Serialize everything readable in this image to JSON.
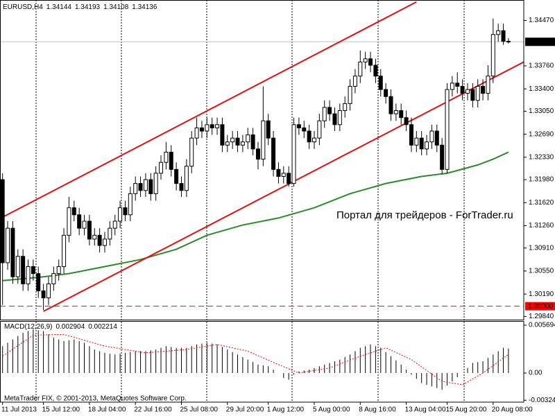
{
  "chart_data": [
    {
      "type": "candlestick",
      "symbol": "EURUSD,H4",
      "candle_color": "#000000",
      "up_fill": "#ffffff",
      "down_fill": "#000000",
      "open": [
        1.3198,
        1.3068,
        1.3122,
        1.3046,
        1.3078,
        1.3035,
        1.3062,
        1.3051,
        1.3024,
        1.3013,
        1.3035,
        1.3051,
        1.3062,
        1.3111,
        1.3154,
        1.3143,
        1.3122,
        1.3133,
        1.3105,
        1.3111,
        1.3095,
        1.3105,
        1.3122,
        1.3133,
        1.3154,
        1.3143,
        1.3176,
        1.3192,
        1.3181,
        1.3198,
        1.3176,
        1.3208,
        1.3225,
        1.3241,
        1.3214,
        1.3192,
        1.3181,
        1.3219,
        1.3263,
        1.3279,
        1.3274,
        1.3284,
        1.3279,
        1.3284,
        1.3252,
        1.3257,
        1.3263,
        1.3252,
        1.3257,
        1.3268,
        1.3246,
        1.323,
        1.329,
        1.3263,
        1.3214,
        1.3203,
        1.3208,
        1.3192,
        1.3284,
        1.3279,
        1.3274,
        1.3257,
        1.3263,
        1.329,
        1.3311,
        1.3301,
        1.3284,
        1.3306,
        1.3317,
        1.3344,
        1.336,
        1.3382,
        1.3387,
        1.3377,
        1.336,
        1.3339,
        1.3328,
        1.3301,
        1.3306,
        1.3295,
        1.3284,
        1.3252,
        1.3263,
        1.3246,
        1.3257,
        1.3274,
        1.3252,
        1.3214,
        1.3339,
        1.3349,
        1.3344,
        1.3333,
        1.3339,
        1.3322,
        1.3344,
        1.3333,
        1.336,
        1.3425,
        1.3431,
        1.34144
      ],
      "high": [
        1.3208,
        1.3133,
        1.3133,
        1.3089,
        1.3089,
        1.3073,
        1.3073,
        1.3062,
        1.3035,
        1.3046,
        1.3062,
        1.3073,
        1.3122,
        1.3171,
        1.3165,
        1.3154,
        1.3143,
        1.3143,
        1.3122,
        1.3122,
        1.3116,
        1.3133,
        1.3143,
        1.3165,
        1.3165,
        1.3187,
        1.3203,
        1.3203,
        1.3208,
        1.3208,
        1.3219,
        1.3236,
        1.3257,
        1.3252,
        1.3225,
        1.3203,
        1.323,
        1.3274,
        1.3295,
        1.329,
        1.3295,
        1.3295,
        1.3295,
        1.3295,
        1.3268,
        1.3274,
        1.3274,
        1.3268,
        1.3279,
        1.3279,
        1.3257,
        1.3344,
        1.3301,
        1.3274,
        1.3225,
        1.3219,
        1.3219,
        1.3295,
        1.3295,
        1.329,
        1.3284,
        1.3274,
        1.3301,
        1.3322,
        1.3322,
        1.3311,
        1.3317,
        1.3328,
        1.3355,
        1.3371,
        1.34,
        1.3398,
        1.3398,
        1.3387,
        1.3371,
        1.3349,
        1.3339,
        1.3317,
        1.3317,
        1.3306,
        1.3295,
        1.3274,
        1.3274,
        1.3268,
        1.3284,
        1.3284,
        1.3263,
        1.3349,
        1.336,
        1.3366,
        1.3355,
        1.3349,
        1.3349,
        1.3355,
        1.3355,
        1.3377,
        1.345,
        1.3442,
        1.3442,
        1.34193
      ],
      "low": [
        1.3002,
        1.3057,
        1.3035,
        1.3035,
        1.3024,
        1.3024,
        1.304,
        1.3013,
        1.2994,
        1.3002,
        1.3024,
        1.304,
        1.3051,
        1.31,
        1.3133,
        1.3111,
        1.3111,
        1.3095,
        1.3095,
        1.3084,
        1.3084,
        1.3095,
        1.3111,
        1.3122,
        1.3133,
        1.3133,
        1.3165,
        1.3171,
        1.3171,
        1.3165,
        1.3165,
        1.3198,
        1.3214,
        1.3203,
        1.3181,
        1.3171,
        1.3171,
        1.3208,
        1.3252,
        1.3263,
        1.3263,
        1.3268,
        1.3268,
        1.3241,
        1.3241,
        1.3246,
        1.3241,
        1.3241,
        1.3246,
        1.3236,
        1.3214,
        1.3219,
        1.3252,
        1.3203,
        1.3192,
        1.3192,
        1.3187,
        1.3187,
        1.3268,
        1.3263,
        1.3246,
        1.3246,
        1.3252,
        1.3279,
        1.329,
        1.3274,
        1.3274,
        1.3295,
        1.3306,
        1.3333,
        1.3349,
        1.3371,
        1.3366,
        1.3349,
        1.3328,
        1.3317,
        1.329,
        1.329,
        1.3284,
        1.3274,
        1.3241,
        1.3241,
        1.3236,
        1.3236,
        1.3246,
        1.3241,
        1.3206,
        1.3208,
        1.3328,
        1.3333,
        1.3322,
        1.3322,
        1.3311,
        1.3311,
        1.3322,
        1.3322,
        1.3349,
        1.3414,
        1.3409,
        1.34108
      ],
      "close": [
        1.3068,
        1.3122,
        1.3046,
        1.3078,
        1.3035,
        1.3062,
        1.3051,
        1.3024,
        1.3013,
        1.3035,
        1.3051,
        1.3062,
        1.3111,
        1.3154,
        1.3143,
        1.3122,
        1.3133,
        1.3105,
        1.3111,
        1.3095,
        1.3105,
        1.3122,
        1.3133,
        1.3154,
        1.3143,
        1.3176,
        1.3192,
        1.3181,
        1.3198,
        1.3176,
        1.3208,
        1.3225,
        1.3241,
        1.3214,
        1.3192,
        1.3181,
        1.3219,
        1.3263,
        1.3279,
        1.3274,
        1.3284,
        1.3279,
        1.3284,
        1.3252,
        1.3257,
        1.3263,
        1.3252,
        1.3257,
        1.3268,
        1.3246,
        1.323,
        1.329,
        1.3263,
        1.3214,
        1.3203,
        1.3208,
        1.3192,
        1.3284,
        1.3279,
        1.3274,
        1.3257,
        1.3263,
        1.329,
        1.3311,
        1.3301,
        1.3284,
        1.3306,
        1.3317,
        1.3344,
        1.336,
        1.3382,
        1.3387,
        1.3377,
        1.336,
        1.3339,
        1.3328,
        1.3301,
        1.3306,
        1.3295,
        1.3284,
        1.3252,
        1.3263,
        1.3246,
        1.3257,
        1.3274,
        1.3252,
        1.3214,
        1.3339,
        1.3349,
        1.3344,
        1.3333,
        1.3339,
        1.3322,
        1.3344,
        1.3333,
        1.336,
        1.3425,
        1.3431,
        1.34144,
        1.34136
      ],
      "xlim": [
        -0.5,
        102
      ],
      "ylim": [
        1.2979,
        1.3479
      ],
      "yticks": [
        {
          "value": 1.3447,
          "label": "1.34470"
        },
        {
          "value": 1.3376,
          "label": "1.33760"
        },
        {
          "value": 1.334,
          "label": "1.33400"
        },
        {
          "value": 1.3305,
          "label": "1.33050"
        },
        {
          "value": 1.3269,
          "label": "1.32690"
        },
        {
          "value": 1.3233,
          "label": "1.32330"
        },
        {
          "value": 1.3198,
          "label": "1.31980"
        },
        {
          "value": 1.3162,
          "label": "1.31620"
        },
        {
          "value": 1.3126,
          "label": "1.31260"
        },
        {
          "value": 1.3091,
          "label": "1.30910"
        },
        {
          "value": 1.3055,
          "label": "1.30550"
        },
        {
          "value": 1.3019,
          "label": "1.30190"
        },
        {
          "value": 1.2984,
          "label": "1.29840"
        }
      ],
      "xticks": [
        {
          "value": 0,
          "label": "11 Jul 2013"
        },
        {
          "value": 8,
          "label": "15 Jul 12:00"
        },
        {
          "value": 17,
          "label": "18 Jul 04:00"
        },
        {
          "value": 26,
          "label": "22 Jul 16:00"
        },
        {
          "value": 35,
          "label": "25 Jul 08:00"
        },
        {
          "value": 44,
          "label": "29 Jul 20:00"
        },
        {
          "value": 52,
          "label": "1 Aug 12:00"
        },
        {
          "value": 61,
          "label": "5 Aug 00:00"
        },
        {
          "value": 70,
          "label": "8 Aug 16:00"
        },
        {
          "value": 79,
          "label": "13 Aug 04:00"
        },
        {
          "value": 87,
          "label": "15 Aug 20:00"
        },
        {
          "value": 96,
          "label": "20 Aug 08:00"
        }
      ],
      "moving_average": {
        "color": "#2a8a2a",
        "x": [
          0,
          8,
          13,
          20,
          27,
          34,
          40,
          47,
          54,
          61,
          68,
          75,
          82,
          87,
          93,
          96,
          99
        ],
        "values": [
          1.304,
          1.3046,
          1.3051,
          1.3062,
          1.3073,
          1.3089,
          1.3111,
          1.3127,
          1.3138,
          1.3154,
          1.3176,
          1.3192,
          1.3203,
          1.3208,
          1.3221,
          1.323,
          1.3241
        ]
      },
      "channel": [
        {
          "color": "#e01010",
          "x": [
            -0.3,
            81
          ],
          "values": [
            1.3138,
            1.3476
          ]
        },
        {
          "color": "#e01010",
          "x": [
            8,
            102
          ],
          "values": [
            1.2992,
            1.3382
          ]
        }
      ],
      "level": {
        "value": 1.3,
        "label": "1.30000",
        "color": "#ff0000"
      },
      "price_line_color": "#c0c0c0",
      "watermark": "Портал для трейдеров - ForTrader.ru",
      "copyright": "MetaTrader FIX, © 2001-2013, MetaQuotes Software Corp."
    },
    {
      "type": "histogram",
      "title": "MACD(12,26,9)",
      "color": "#000000",
      "ylim": [
        -0.00347,
        0.00619
      ],
      "yticks": [
        0.005694,
        {
          "value": 0,
          "label": "0.00"
        },
        -0.003243
      ],
      "values": [
        0.0032,
        0.0036,
        0.004,
        0.0044,
        0.0048,
        0.005,
        0.0052,
        0.0051,
        0.005,
        0.0046,
        0.0042,
        0.004,
        0.0038,
        0.0039,
        0.004,
        0.0038,
        0.0036,
        0.0032,
        0.0028,
        0.0026,
        0.0024,
        0.0023,
        0.0022,
        0.0023,
        0.0024,
        0.0025,
        0.0026,
        0.0026,
        0.0026,
        0.0027,
        0.0028,
        0.003,
        0.0032,
        0.0031,
        0.003,
        0.003,
        0.003,
        0.0032,
        0.0034,
        0.0035,
        0.0036,
        0.0035,
        0.0034,
        0.0031,
        0.0028,
        0.0025,
        0.0022,
        0.0019,
        0.0016,
        0.0013,
        0.001,
        0.0009,
        0.0008,
        0.0004,
        0.0,
        -0.0006,
        -0.0008,
        -0.0002,
        0.0002,
        0.0003,
        0.0004,
        0.0006,
        0.0008,
        0.001,
        0.0012,
        0.0014,
        0.0016,
        0.0019,
        0.0022,
        0.0026,
        0.003,
        0.0032,
        0.0034,
        0.0032,
        0.003,
        0.0025,
        0.002,
        0.0015,
        0.001,
        0.0004,
        -0.0002,
        -0.0007,
        -0.0012,
        -0.0014,
        -0.0016,
        -0.0018,
        -0.002,
        -0.0015,
        -0.001,
        -0.0005,
        0.0,
        0.0006,
        0.0012,
        0.0013,
        0.0014,
        0.0018,
        0.0022,
        0.0026,
        0.003,
        0.002904
      ],
      "signal": {
        "color": "#ff0000",
        "x": [
          0,
          6,
          12,
          20,
          28,
          36,
          42,
          48,
          54,
          58,
          64,
          70,
          75,
          80,
          86,
          90,
          94,
          99
        ],
        "values": [
          0.002,
          0.0045,
          0.0046,
          0.0032,
          0.0024,
          0.0028,
          0.0034,
          0.0026,
          0.001,
          0.0,
          0.0006,
          0.002,
          0.003,
          0.0016,
          -0.001,
          -0.0014,
          0.0,
          0.002214
        ]
      }
    }
  ]
}
